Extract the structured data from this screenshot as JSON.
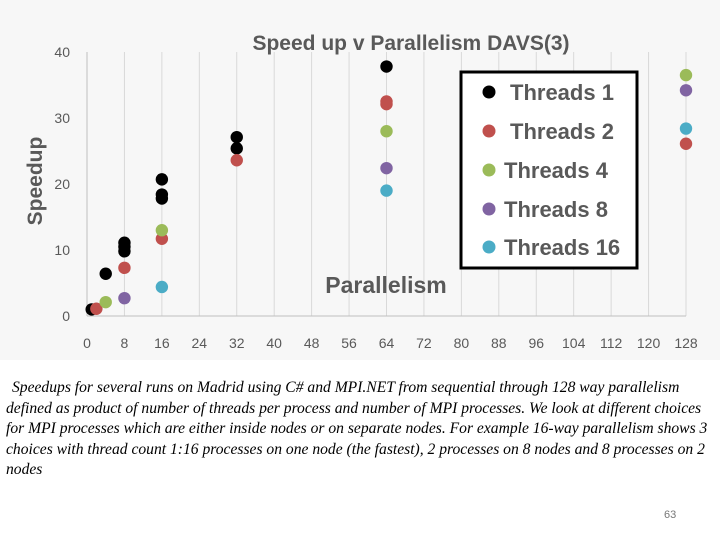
{
  "chart_data": {
    "type": "scatter",
    "title": "Speed up v Parallelism DAVS(3)",
    "xlabel": "Parallelism",
    "ylabel": "Speedup",
    "xlim": [
      0,
      128
    ],
    "ylim": [
      0,
      40
    ],
    "x_ticks": [
      0,
      8,
      16,
      24,
      32,
      40,
      48,
      56,
      64,
      72,
      80,
      88,
      96,
      104,
      112,
      120,
      128
    ],
    "y_ticks": [
      0,
      10,
      20,
      30,
      40
    ],
    "grid": "vertical",
    "legend_position": "top-right",
    "series": [
      {
        "name": "Threads 1",
        "color": "#000000",
        "points": [
          [
            1,
            1
          ],
          [
            4,
            6.4
          ],
          [
            8,
            9.8
          ],
          [
            8,
            10.5
          ],
          [
            8,
            11.1
          ],
          [
            16,
            17.8
          ],
          [
            16,
            18.4
          ],
          [
            16,
            20.7
          ],
          [
            32,
            25.4
          ],
          [
            32,
            27.1
          ],
          [
            64,
            37.8
          ]
        ]
      },
      {
        "name": "Threads 2",
        "color": "#c0504d",
        "points": [
          [
            2,
            1.1
          ],
          [
            8,
            7.3
          ],
          [
            16,
            11.7
          ],
          [
            32,
            23.6
          ],
          [
            64,
            32.1
          ],
          [
            64,
            32.5
          ],
          [
            128,
            26.1
          ]
        ]
      },
      {
        "name": "Threads 4",
        "color": "#9bbb59",
        "points": [
          [
            4,
            2.1
          ],
          [
            16,
            13
          ],
          [
            64,
            28
          ],
          [
            128,
            36.5
          ]
        ]
      },
      {
        "name": "Threads 8",
        "color": "#8064a2",
        "points": [
          [
            8,
            2.7
          ],
          [
            64,
            22.4
          ],
          [
            128,
            34.2
          ]
        ]
      },
      {
        "name": "Threads 16",
        "color": "#4bacc6",
        "points": [
          [
            16,
            4.4
          ],
          [
            64,
            19
          ],
          [
            128,
            28.4
          ]
        ]
      }
    ]
  },
  "caption": "Speedups for several runs on Madrid using C# and MPI.NET from sequential through 128 way parallelism defined as product of number of threads per process and number of MPI processes. We look at different choices for MPI processes which are either inside nodes or on separate nodes. For example 16-way parallelism shows 3 choices with thread count 1:16 processes on one node (the fastest), 2 processes on 8 nodes and 8 processes on 2 nodes",
  "page_number": "63"
}
